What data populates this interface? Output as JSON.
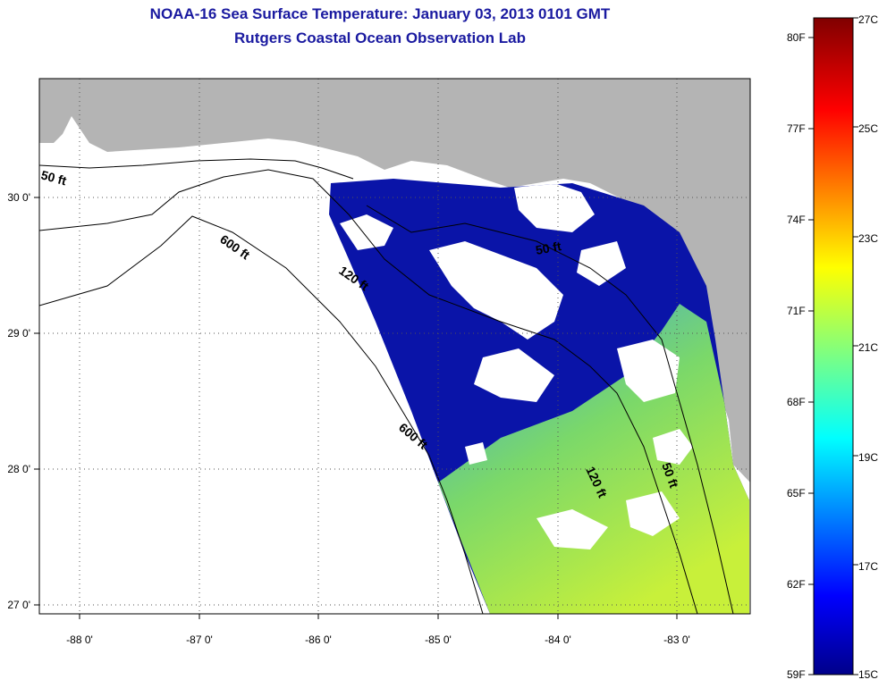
{
  "header": {
    "title": "NOAA-16 Sea Surface Temperature:  January 03, 2013 0101 GMT",
    "subtitle": "Rutgers Coastal Ocean Observation Lab"
  },
  "map": {
    "lon_ticks": [
      "-88 0'",
      "-87 0'",
      "-86 0'",
      "-85 0'",
      "-84 0'",
      "-83 0'"
    ],
    "lat_ticks": [
      "30 0'",
      "29 0'",
      "28 0'",
      "27 0'"
    ],
    "contour_labels": [
      "50 ft",
      "600 ft",
      "120 ft",
      "50 ft",
      "600 ft",
      "120 ft",
      "50 ft"
    ],
    "colors": {
      "land": "#b4b4b4",
      "cloud": "#ffffff",
      "ocean_cold": "#0a14a8",
      "ocean_warm": "#8fe84a"
    }
  },
  "colorbar": {
    "fahrenheit_labels": [
      "80F",
      "77F",
      "74F",
      "71F",
      "68F",
      "65F",
      "62F",
      "59F"
    ],
    "celsius_labels": [
      "27C",
      "25C",
      "23C",
      "21C",
      "19C",
      "17C",
      "15C"
    ],
    "range_c": [
      15,
      27
    ],
    "range_f": [
      59,
      80
    ]
  }
}
